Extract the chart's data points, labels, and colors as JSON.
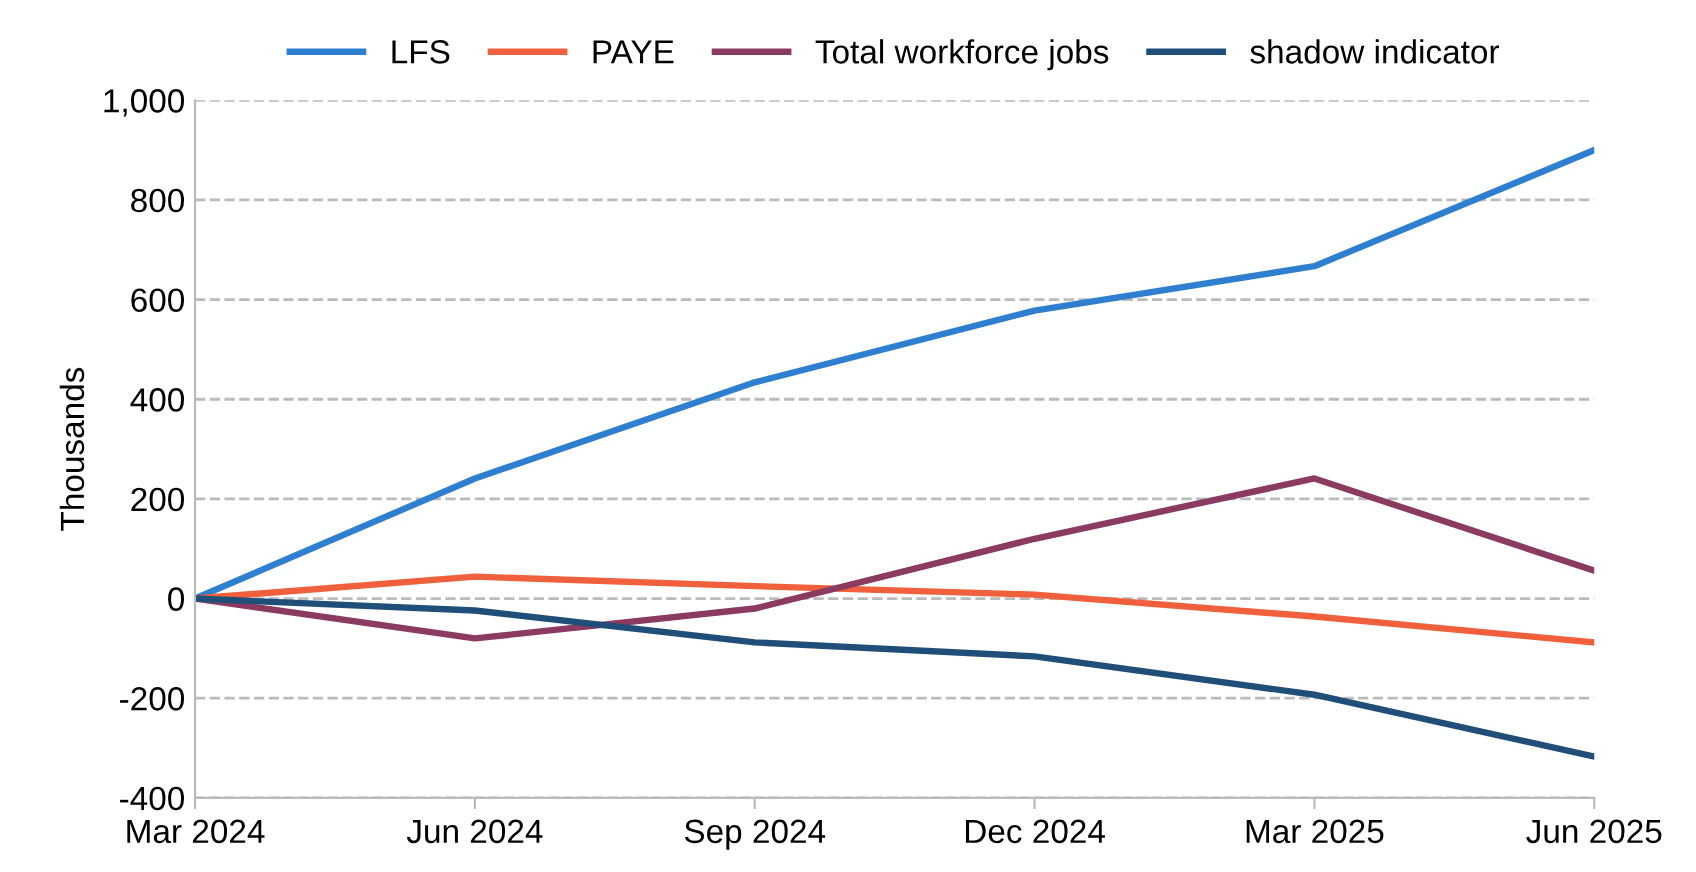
{
  "chart_data": {
    "type": "line",
    "ylabel": "Thousands",
    "categories": [
      "Mar 2024",
      "Jun 2024",
      "Sep 2024",
      "Dec 2024",
      "Mar 2025",
      "Jun 2025"
    ],
    "series": [
      {
        "name": "LFS",
        "color": "#2e7fd0",
        "values": [
          0,
          241,
          434,
          578,
          667,
          900
        ]
      },
      {
        "name": "PAYE",
        "color": "#f0603c",
        "values": [
          0,
          44,
          25,
          8,
          -36,
          -88
        ]
      },
      {
        "name": "Total workforce jobs",
        "color": "#8b3a62",
        "values": [
          0,
          -80,
          -20,
          120,
          241,
          56
        ]
      },
      {
        "name": "shadow indicator",
        "color": "#1f4e79",
        "values": [
          0,
          -24,
          -88,
          -116,
          -193,
          -317
        ]
      }
    ],
    "ylim": [
      -400,
      1000
    ],
    "yticks": [
      -400,
      -200,
      0,
      200,
      400,
      600,
      800,
      {
        "value": 1000,
        "label": "1,000"
      }
    ],
    "grid": "y",
    "legend": "top",
    "marker": "none",
    "line_style": "solid"
  }
}
